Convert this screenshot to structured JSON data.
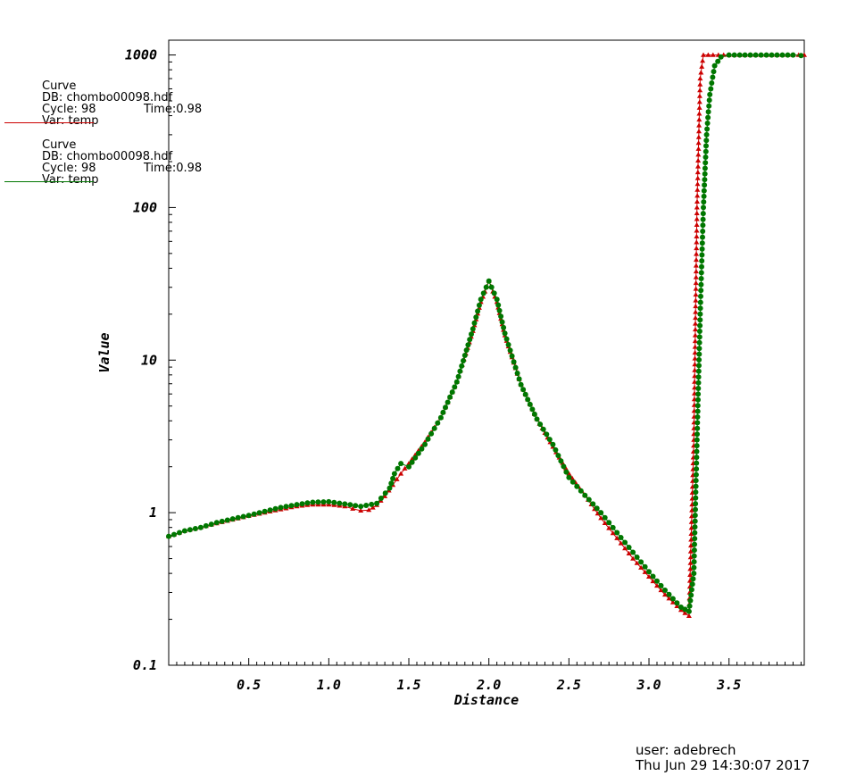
{
  "legend": [
    {
      "title": "Curve",
      "db": "DB: chombo00098.hdf",
      "cycle": "Cycle: 98",
      "time": "Time:0.98",
      "var": "Var: temp",
      "color": "#cc0000"
    },
    {
      "title": "Curve",
      "db": "DB: chombo00098.hdf",
      "cycle": "Cycle: 98",
      "time": "Time:0.98",
      "var": "Var: temp",
      "color": "#007700"
    }
  ],
  "footer": {
    "user": "user: adebrech",
    "timestamp": "Thu Jun 29 14:30:07 2017"
  },
  "chart_data": {
    "type": "line",
    "xlabel": "Distance",
    "ylabel": "Value",
    "yscale": "log",
    "xlim": [
      0.0,
      3.97
    ],
    "ylim": [
      0.1,
      1250
    ],
    "xticks": [
      "0.5",
      "1.0",
      "1.5",
      "2.0",
      "2.5",
      "3.0",
      "3.5"
    ],
    "xtick_values": [
      0.5,
      1.0,
      1.5,
      2.0,
      2.5,
      3.0,
      3.5
    ],
    "yticks": [
      "0.1",
      "1",
      "10",
      "100",
      "1000"
    ],
    "ytick_values": [
      0.1,
      1,
      10,
      100,
      1000
    ],
    "grid": false,
    "series": [
      {
        "color": "#cc0000",
        "marker": "triangle",
        "x": [
          0.0,
          0.1,
          0.2,
          0.3,
          0.4,
          0.5,
          0.6,
          0.7,
          0.8,
          0.9,
          1.0,
          1.1,
          1.15,
          1.2,
          1.25,
          1.3,
          1.35,
          1.4,
          1.45,
          1.5,
          1.6,
          1.7,
          1.8,
          1.9,
          1.95,
          2.0,
          2.05,
          2.1,
          2.2,
          2.3,
          2.4,
          2.5,
          2.6,
          2.7,
          2.8,
          2.9,
          3.0,
          3.1,
          3.2,
          3.25,
          3.28,
          3.3,
          3.32,
          3.34,
          3.4,
          3.5,
          3.6,
          3.7,
          3.8,
          3.9,
          3.97
        ],
        "y": [
          0.7,
          0.76,
          0.8,
          0.85,
          0.9,
          0.95,
          1.0,
          1.05,
          1.1,
          1.13,
          1.13,
          1.1,
          1.06,
          1.03,
          1.04,
          1.12,
          1.28,
          1.52,
          1.8,
          2.1,
          2.9,
          4.2,
          7.2,
          15.5,
          24,
          33,
          24,
          14.5,
          6.9,
          4.1,
          2.7,
          1.8,
          1.3,
          0.92,
          0.68,
          0.5,
          0.38,
          0.29,
          0.23,
          0.21,
          3,
          100,
          700,
          1000,
          1000,
          1000,
          1000,
          1000,
          1000,
          1000,
          1000
        ]
      },
      {
        "color": "#007700",
        "marker": "circle",
        "x": [
          0.0,
          0.1,
          0.2,
          0.3,
          0.4,
          0.5,
          0.6,
          0.7,
          0.8,
          0.9,
          1.0,
          1.1,
          1.2,
          1.3,
          1.38,
          1.41,
          1.45,
          1.5,
          1.6,
          1.7,
          1.8,
          1.9,
          1.95,
          2.0,
          2.05,
          2.1,
          2.2,
          2.3,
          2.4,
          2.5,
          2.6,
          2.7,
          2.8,
          2.9,
          3.0,
          3.1,
          3.2,
          3.25,
          3.28,
          3.3,
          3.32,
          3.34,
          3.36,
          3.38,
          3.41,
          3.45,
          3.5,
          3.6,
          3.7,
          3.8,
          3.9,
          3.95
        ],
        "y": [
          0.7,
          0.76,
          0.8,
          0.86,
          0.91,
          0.96,
          1.02,
          1.08,
          1.13,
          1.17,
          1.18,
          1.14,
          1.1,
          1.15,
          1.45,
          1.8,
          2.1,
          2.0,
          2.8,
          4.2,
          7.2,
          16,
          25,
          33,
          25,
          15,
          6.9,
          4.1,
          2.8,
          1.7,
          1.3,
          1.0,
          0.74,
          0.55,
          0.41,
          0.31,
          0.24,
          0.225,
          0.4,
          3,
          20,
          100,
          300,
          550,
          850,
          970,
          1000,
          1000,
          1000,
          1000,
          1000,
          990
        ]
      }
    ]
  }
}
